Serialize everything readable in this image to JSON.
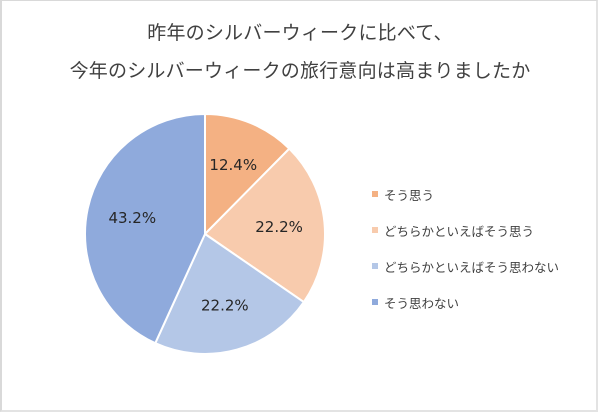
{
  "chart_data": {
    "type": "pie",
    "title": "昨年のシルバーウィークに比べて、今年のシルバーウィークの旅行意向は高まりましたか",
    "title_lines": [
      "昨年のシルバーウィークに比べて、",
      "今年のシルバーウィークの旅行意向は高まりましたか"
    ],
    "categories": [
      "そう思う",
      "どちらかといえばそう思う",
      "どちらかといえばそう思わない",
      "そう思わない"
    ],
    "values": [
      12.4,
      22.2,
      22.2,
      43.2
    ],
    "labels": [
      "12.4%",
      "22.2%",
      "22.2%",
      "43.2%"
    ],
    "colors": [
      "#f4b183",
      "#f8cbad",
      "#b4c7e7",
      "#8faadc"
    ],
    "start_angle": "12 o'clock, clockwise",
    "legend_position": "right"
  }
}
